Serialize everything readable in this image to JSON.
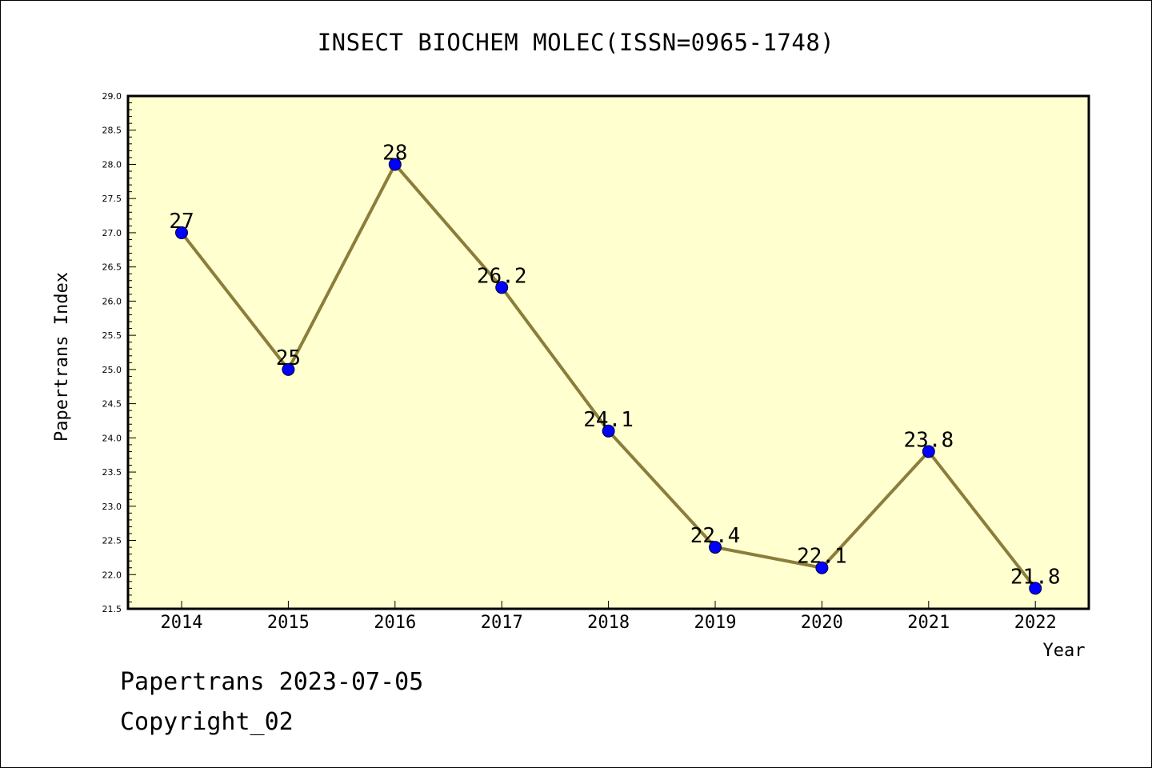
{
  "chart_data": {
    "type": "line",
    "title": "INSECT BIOCHEM MOLEC(ISSN=0965-1748)",
    "xlabel": "Year",
    "ylabel": "Papertrans Index",
    "categories": [
      "2014",
      "2015",
      "2016",
      "2017",
      "2018",
      "2019",
      "2020",
      "2021",
      "2022"
    ],
    "values": [
      27,
      25,
      28,
      26.2,
      24.1,
      22.4,
      22.1,
      23.8,
      21.8
    ],
    "data_labels": [
      "27",
      "25",
      "28",
      "26.2",
      "24.1",
      "22.4",
      "22.1",
      "23.8",
      "21.8"
    ],
    "ylim": [
      21.5,
      29.0
    ],
    "y_major_step": 0.5,
    "y_minor_step": 0.1,
    "y_tick_labels": [
      "21.5",
      "22.0",
      "22.5",
      "23.0",
      "23.5",
      "24.0",
      "24.5",
      "25.0",
      "25.5",
      "26.0",
      "26.5",
      "27.0",
      "27.5",
      "28.0",
      "28.5",
      "29.0"
    ],
    "plot_background": "#ffffd0",
    "line_color": "#8b7d3a",
    "marker_color": "#0000ff",
    "grid": false
  },
  "footer": {
    "line1": "Papertrans 2023-07-05",
    "line2": "Copyright_02"
  }
}
